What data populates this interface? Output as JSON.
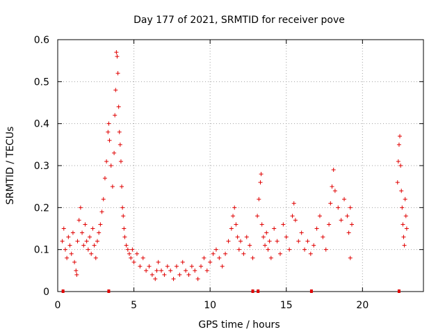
{
  "chart_data": {
    "type": "scatter",
    "title": "Day 177 of 2021, SRMTID for receiver pove",
    "xlabel": "GPS time / hours",
    "ylabel": "SRMTID / TECUs",
    "xlim": [
      0,
      24
    ],
    "ylim": [
      0,
      0.6
    ],
    "x_ticks": [
      0,
      5,
      10,
      15,
      20
    ],
    "x_tick_labels": [
      "0",
      "5",
      "10",
      "15",
      "20"
    ],
    "y_ticks": [
      0,
      0.1,
      0.2,
      0.3,
      0.4,
      0.5,
      0.6
    ],
    "y_tick_labels": [
      "0",
      "0.1",
      "0.2",
      "0.3",
      "0.4",
      "0.5",
      "0.6"
    ],
    "grid": true,
    "marker": "+",
    "color": "#e00000",
    "series": [
      {
        "name": "SRMTID",
        "points": [
          [
            0.3,
            0.12
          ],
          [
            0.4,
            0.15
          ],
          [
            0.5,
            0.1
          ],
          [
            0.6,
            0.08
          ],
          [
            0.7,
            0.13
          ],
          [
            0.8,
            0.11
          ],
          [
            0.9,
            0.09
          ],
          [
            1.0,
            0.14
          ],
          [
            1.1,
            0.07
          ],
          [
            1.2,
            0.05
          ],
          [
            1.25,
            0.04
          ],
          [
            1.3,
            0.12
          ],
          [
            1.4,
            0.17
          ],
          [
            1.5,
            0.2
          ],
          [
            1.6,
            0.14
          ],
          [
            1.7,
            0.11
          ],
          [
            1.8,
            0.16
          ],
          [
            1.9,
            0.12
          ],
          [
            2.0,
            0.1
          ],
          [
            2.1,
            0.13
          ],
          [
            2.2,
            0.09
          ],
          [
            2.3,
            0.15
          ],
          [
            2.4,
            0.11
          ],
          [
            2.5,
            0.08
          ],
          [
            2.6,
            0.12
          ],
          [
            2.7,
            0.14
          ],
          [
            2.8,
            0.16
          ],
          [
            2.9,
            0.19
          ],
          [
            3.0,
            0.22
          ],
          [
            3.1,
            0.27
          ],
          [
            3.2,
            0.31
          ],
          [
            3.3,
            0.38
          ],
          [
            3.35,
            0.4
          ],
          [
            3.4,
            0.36
          ],
          [
            3.5,
            0.3
          ],
          [
            3.6,
            0.25
          ],
          [
            3.7,
            0.33
          ],
          [
            3.75,
            0.42
          ],
          [
            3.8,
            0.48
          ],
          [
            3.85,
            0.57
          ],
          [
            3.9,
            0.56
          ],
          [
            3.95,
            0.52
          ],
          [
            4.0,
            0.44
          ],
          [
            4.05,
            0.38
          ],
          [
            4.1,
            0.35
          ],
          [
            4.15,
            0.31
          ],
          [
            4.2,
            0.25
          ],
          [
            4.25,
            0.2
          ],
          [
            4.3,
            0.18
          ],
          [
            4.35,
            0.15
          ],
          [
            4.4,
            0.13
          ],
          [
            4.5,
            0.11
          ],
          [
            4.6,
            0.1
          ],
          [
            4.7,
            0.09
          ],
          [
            4.8,
            0.08
          ],
          [
            4.9,
            0.1
          ],
          [
            5.0,
            0.07
          ],
          [
            5.2,
            0.09
          ],
          [
            5.4,
            0.06
          ],
          [
            5.6,
            0.08
          ],
          [
            5.8,
            0.05
          ],
          [
            6.0,
            0.06
          ],
          [
            6.2,
            0.04
          ],
          [
            6.4,
            0.03
          ],
          [
            6.5,
            0.05
          ],
          [
            6.6,
            0.07
          ],
          [
            6.8,
            0.05
          ],
          [
            7.0,
            0.04
          ],
          [
            7.2,
            0.06
          ],
          [
            7.4,
            0.05
          ],
          [
            7.6,
            0.03
          ],
          [
            7.8,
            0.06
          ],
          [
            8.0,
            0.04
          ],
          [
            8.2,
            0.07
          ],
          [
            8.4,
            0.05
          ],
          [
            8.6,
            0.04
          ],
          [
            8.8,
            0.06
          ],
          [
            9.0,
            0.05
          ],
          [
            9.2,
            0.03
          ],
          [
            9.4,
            0.06
          ],
          [
            9.6,
            0.08
          ],
          [
            9.8,
            0.05
          ],
          [
            10.0,
            0.07
          ],
          [
            10.2,
            0.09
          ],
          [
            10.4,
            0.1
          ],
          [
            10.6,
            0.08
          ],
          [
            10.8,
            0.06
          ],
          [
            11.0,
            0.09
          ],
          [
            11.2,
            0.12
          ],
          [
            11.4,
            0.15
          ],
          [
            11.5,
            0.18
          ],
          [
            11.6,
            0.2
          ],
          [
            11.7,
            0.16
          ],
          [
            11.8,
            0.13
          ],
          [
            11.9,
            0.1
          ],
          [
            12.0,
            0.12
          ],
          [
            12.2,
            0.09
          ],
          [
            12.4,
            0.13
          ],
          [
            12.6,
            0.11
          ],
          [
            12.8,
            0.08
          ],
          [
            13.1,
            0.18
          ],
          [
            13.2,
            0.22
          ],
          [
            13.3,
            0.26
          ],
          [
            13.35,
            0.28
          ],
          [
            13.4,
            0.16
          ],
          [
            13.5,
            0.13
          ],
          [
            13.6,
            0.11
          ],
          [
            13.7,
            0.14
          ],
          [
            13.8,
            0.1
          ],
          [
            13.9,
            0.12
          ],
          [
            14.0,
            0.08
          ],
          [
            14.2,
            0.15
          ],
          [
            14.4,
            0.12
          ],
          [
            14.6,
            0.09
          ],
          [
            14.8,
            0.16
          ],
          [
            15.0,
            0.13
          ],
          [
            15.2,
            0.1
          ],
          [
            15.4,
            0.18
          ],
          [
            15.5,
            0.21
          ],
          [
            15.6,
            0.17
          ],
          [
            15.8,
            0.12
          ],
          [
            16.0,
            0.14
          ],
          [
            16.2,
            0.1
          ],
          [
            16.4,
            0.12
          ],
          [
            16.6,
            0.09
          ],
          [
            16.8,
            0.11
          ],
          [
            17.0,
            0.15
          ],
          [
            17.2,
            0.18
          ],
          [
            17.4,
            0.13
          ],
          [
            17.6,
            0.1
          ],
          [
            17.8,
            0.16
          ],
          [
            17.9,
            0.21
          ],
          [
            18.0,
            0.25
          ],
          [
            18.1,
            0.29
          ],
          [
            18.2,
            0.24
          ],
          [
            18.4,
            0.2
          ],
          [
            18.6,
            0.17
          ],
          [
            18.8,
            0.22
          ],
          [
            19.0,
            0.18
          ],
          [
            19.1,
            0.14
          ],
          [
            19.2,
            0.2
          ],
          [
            19.3,
            0.16
          ],
          [
            19.2,
            0.08
          ],
          [
            22.3,
            0.26
          ],
          [
            22.35,
            0.31
          ],
          [
            22.4,
            0.35
          ],
          [
            22.45,
            0.37
          ],
          [
            22.5,
            0.3
          ],
          [
            22.55,
            0.24
          ],
          [
            22.6,
            0.2
          ],
          [
            22.65,
            0.16
          ],
          [
            22.7,
            0.13
          ],
          [
            22.75,
            0.11
          ],
          [
            22.8,
            0.22
          ],
          [
            22.85,
            0.18
          ],
          [
            22.9,
            0.15
          ]
        ]
      }
    ],
    "gap_markers_x": [
      0.35,
      3.35,
      12.8,
      13.15,
      16.65,
      22.4
    ]
  }
}
